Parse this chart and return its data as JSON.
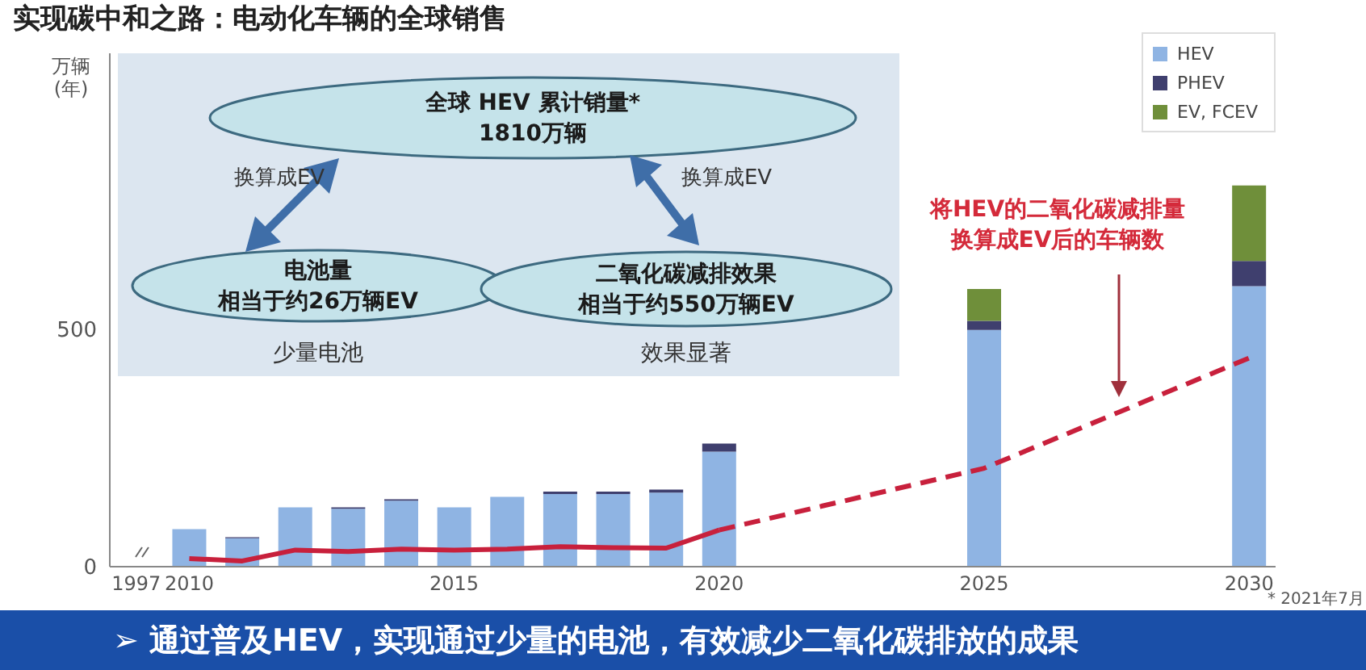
{
  "chart_data": {
    "type": "bar",
    "title": "实现碳中和之路：电动化车辆的全球销售",
    "ylabel": "万辆\n(年)",
    "categories": [
      "1997",
      "2010",
      null,
      null,
      null,
      null,
      "2015",
      null,
      null,
      null,
      null,
      "2020",
      null,
      null,
      null,
      null,
      "2025",
      null,
      null,
      null,
      null,
      "2030"
    ],
    "series": [
      {
        "name": "HEV",
        "color": "#8fb4e3",
        "values": [
          null,
          79,
          60,
          125,
          122,
          139,
          125,
          147,
          153,
          153,
          156,
          242,
          null,
          null,
          null,
          null,
          498,
          null,
          null,
          null,
          null,
          590
        ]
      },
      {
        "name": "PHEV",
        "color": "#3f3f6e",
        "values": [
          null,
          null,
          2,
          null,
          3,
          3,
          null,
          null,
          5,
          5,
          6,
          17,
          null,
          null,
          null,
          null,
          19,
          null,
          null,
          null,
          null,
          53
        ]
      },
      {
        "name": "EV, FCEV",
        "color": "#6f8f3a",
        "values": [
          null,
          null,
          null,
          null,
          null,
          null,
          null,
          null,
          null,
          null,
          null,
          null,
          null,
          null,
          null,
          null,
          67,
          null,
          null,
          null,
          null,
          159
        ]
      },
      {
        "type": "line",
        "color": "#c8203c",
        "line_style": "solid",
        "values": [
          null,
          17,
          12,
          35,
          32,
          37,
          35,
          37,
          42,
          40,
          39,
          77,
          null,
          null,
          null,
          null,
          null,
          null,
          null,
          null,
          null,
          null
        ]
      },
      {
        "type": "line",
        "color": "#c8203c",
        "line_style": "dashed",
        "values": [
          null,
          null,
          null,
          null,
          null,
          null,
          null,
          null,
          null,
          null,
          null,
          77,
          null,
          null,
          null,
          null,
          207,
          null,
          null,
          null,
          null,
          439
        ]
      }
    ],
    "stacked": true,
    "ylim": [
      0,
      1080
    ],
    "yticks": [
      0,
      500
    ],
    "grid": false,
    "legend": "top right",
    "marker": "none",
    "annotations": [
      "全球 HEV 累计销量*",
      "1810万辆",
      "换算成EV",
      "换算成EV",
      "电池量",
      "相当于约26万辆EV",
      "二氧化碳减排效果",
      "相当于约550万辆EV",
      "少量电池",
      "效果显著",
      "将HEV的二氧化碳减排量",
      "换算成EV后的车辆数",
      "* 2021年7月",
      "➢ 通过普及HEV，实现通过少量的电池，有效减少二氧化碳排放的成果"
    ]
  }
}
